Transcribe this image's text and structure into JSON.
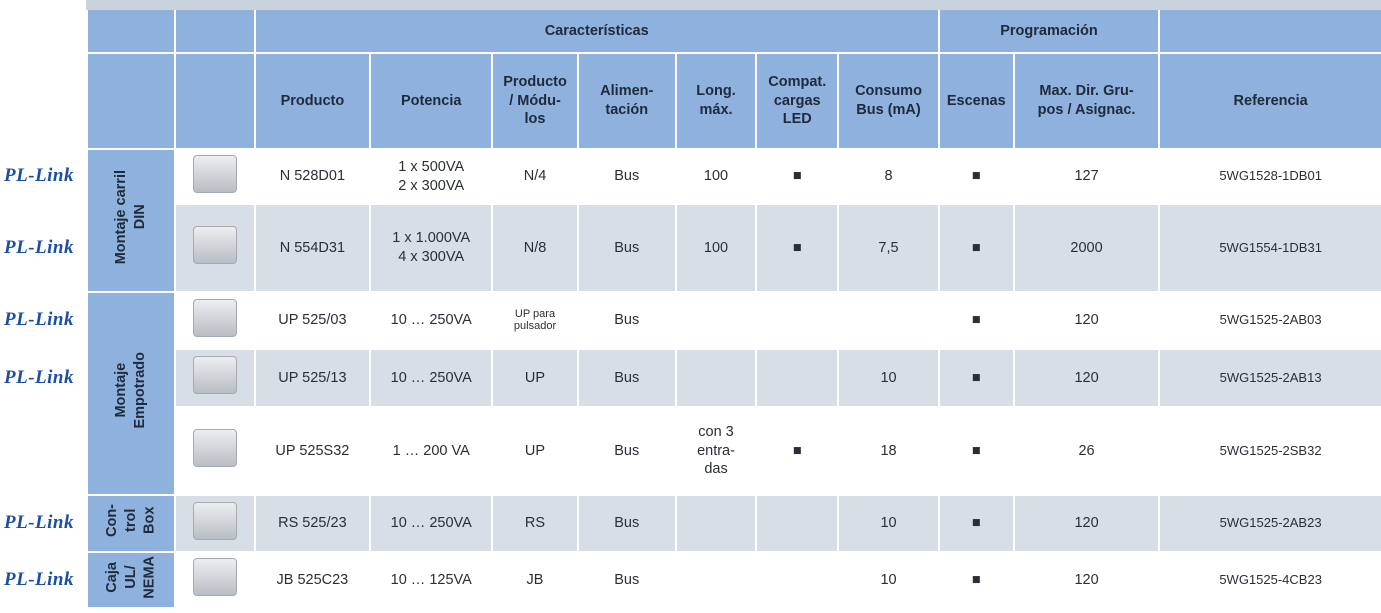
{
  "header": {
    "group_title_1": "Características",
    "group_title_2": "Programación",
    "columns": [
      "Producto",
      "Potencia",
      "Producto\n/ Módu-\nlos",
      "Alimen-\ntación",
      "Long.\nmáx.",
      "Compat.\ncargas\nLED",
      "Consumo\nBus (mA)",
      "Escenas",
      "Max. Dir. Gru-\npos / Asignac.",
      "Referencia"
    ]
  },
  "groups": [
    {
      "label": "Montaje carril\nDIN",
      "rows": [
        {
          "logo": "PL-Link",
          "cells": [
            "N 528D01",
            "1 x 500VA\n2 x 300VA",
            "N/4",
            "Bus",
            "100",
            "■",
            "8",
            "■",
            "127",
            "5WG1528-1DB01"
          ]
        },
        {
          "logo": "PL-Link",
          "cells": [
            "N 554D31",
            "1 x 1.000VA\n4 x 300VA",
            "N/8",
            "Bus",
            "100",
            "■",
            "7,5",
            "■",
            "2000",
            "5WG1554-1DB31"
          ]
        }
      ]
    },
    {
      "label": "Montaje\nEmpotrado",
      "rows": [
        {
          "logo": "PL-Link",
          "cells": [
            "UP 525/03",
            "10 … 250VA",
            "UP para\npulsador",
            "Bus",
            null,
            null,
            null,
            "■",
            "120",
            "5WG1525-2AB03"
          ]
        },
        {
          "logo": "PL-Link",
          "cells": [
            "UP 525/13",
            "10 … 250VA",
            "UP",
            "Bus",
            null,
            null,
            "10",
            "■",
            "120",
            "5WG1525-2AB13"
          ]
        },
        {
          "cells": [
            "UP 525S32",
            "1 … 200 VA",
            "UP",
            "Bus",
            "con 3\nentra-\ndas",
            "■",
            "18",
            "■",
            "26",
            "5WG1525-2SB32"
          ]
        }
      ]
    },
    {
      "label": "Con-\ntrol\nBox",
      "rows": [
        {
          "logo": "PL-Link",
          "cells": [
            "RS 525/23",
            "10 … 250VA",
            "RS",
            "Bus",
            null,
            null,
            "10",
            "■",
            "120",
            "5WG1525-2AB23"
          ]
        }
      ]
    },
    {
      "label": "Caja\nUL/\nNEMA",
      "rows": [
        {
          "logo": "PL-Link",
          "cells": [
            "JB 525C23",
            "10 … 125VA",
            "JB",
            "Bus",
            null,
            null,
            "10",
            "■",
            "120",
            "5WG1525-4CB23"
          ]
        }
      ]
    }
  ]
}
